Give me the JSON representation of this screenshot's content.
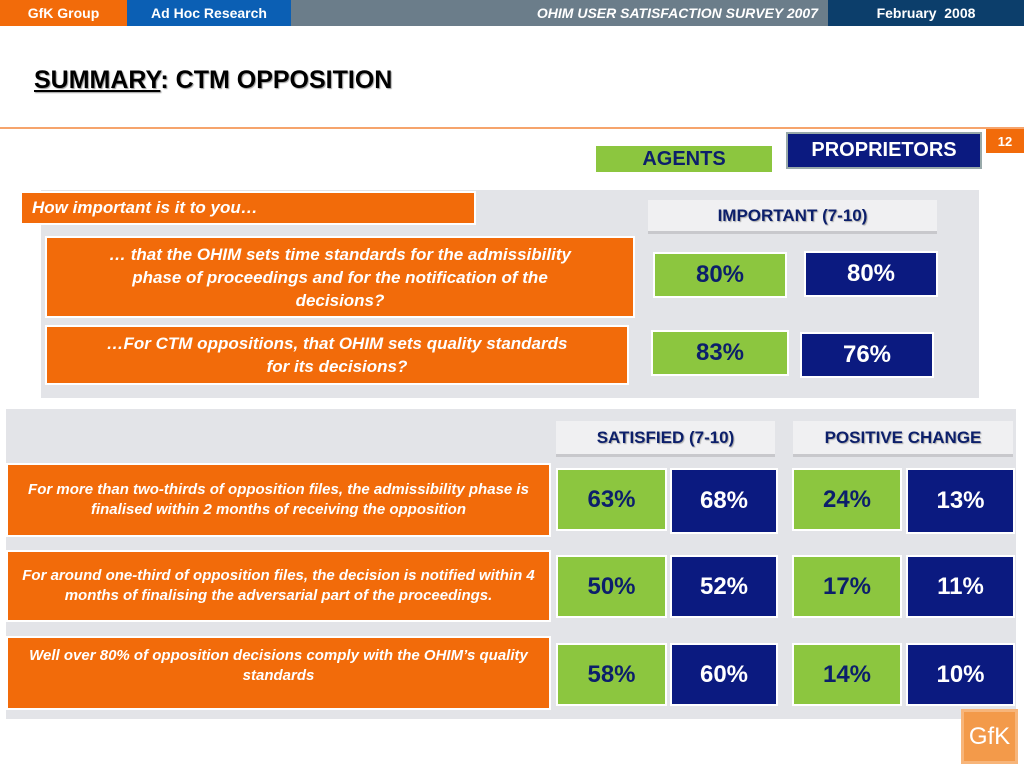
{
  "topbar": {
    "brand": "GfK Group",
    "division": "Ad Hoc Research",
    "survey": "OHIM USER SATISFACTION SURVEY 2007",
    "date": "February  2008"
  },
  "title": {
    "underlined": "SUMMARY",
    "rest": ": CTM OPPOSITION"
  },
  "page_number": "12",
  "legend": {
    "agents": "AGENTS",
    "proprietors": "PROPRIETORS"
  },
  "importance": {
    "question": "How important is it to you…",
    "column": "IMPORTANT (7-10)",
    "rows": [
      {
        "text": "… that the OHIM sets time standards for the admissibility phase of proceedings and for the notification of the decisions?",
        "agents": "80%",
        "proprietors": "80%"
      },
      {
        "text": "…For CTM oppositions, that OHIM sets quality standards for its decisions?",
        "agents": "83%",
        "proprietors": "76%"
      }
    ]
  },
  "satisfaction": {
    "col_satisfied": "SATISFIED (7-10)",
    "col_change": "POSITIVE CHANGE",
    "rows": [
      {
        "text": "For more than two-thirds of opposition files, the admissibility phase is finalised within 2 months of receiving the opposition",
        "sat_agents": "63%",
        "sat_proprietors": "68%",
        "chg_agents": "24%",
        "chg_proprietors": "13%"
      },
      {
        "text": "For around one-third of opposition files, the decision is notified within 4 months of finalising the adversarial part of the proceedings.",
        "sat_agents": "50%",
        "sat_proprietors": "52%",
        "chg_agents": "17%",
        "chg_proprietors": "11%"
      },
      {
        "text": "Well over 80% of opposition decisions comply with the OHIM’s quality standards",
        "sat_agents": "58%",
        "sat_proprietors": "60%",
        "chg_agents": "14%",
        "chg_proprietors": "10%"
      }
    ]
  },
  "logo": "GfK",
  "colors": {
    "orange": "#f26b0a",
    "green": "#8cc63f",
    "navy": "#0b1a80"
  }
}
